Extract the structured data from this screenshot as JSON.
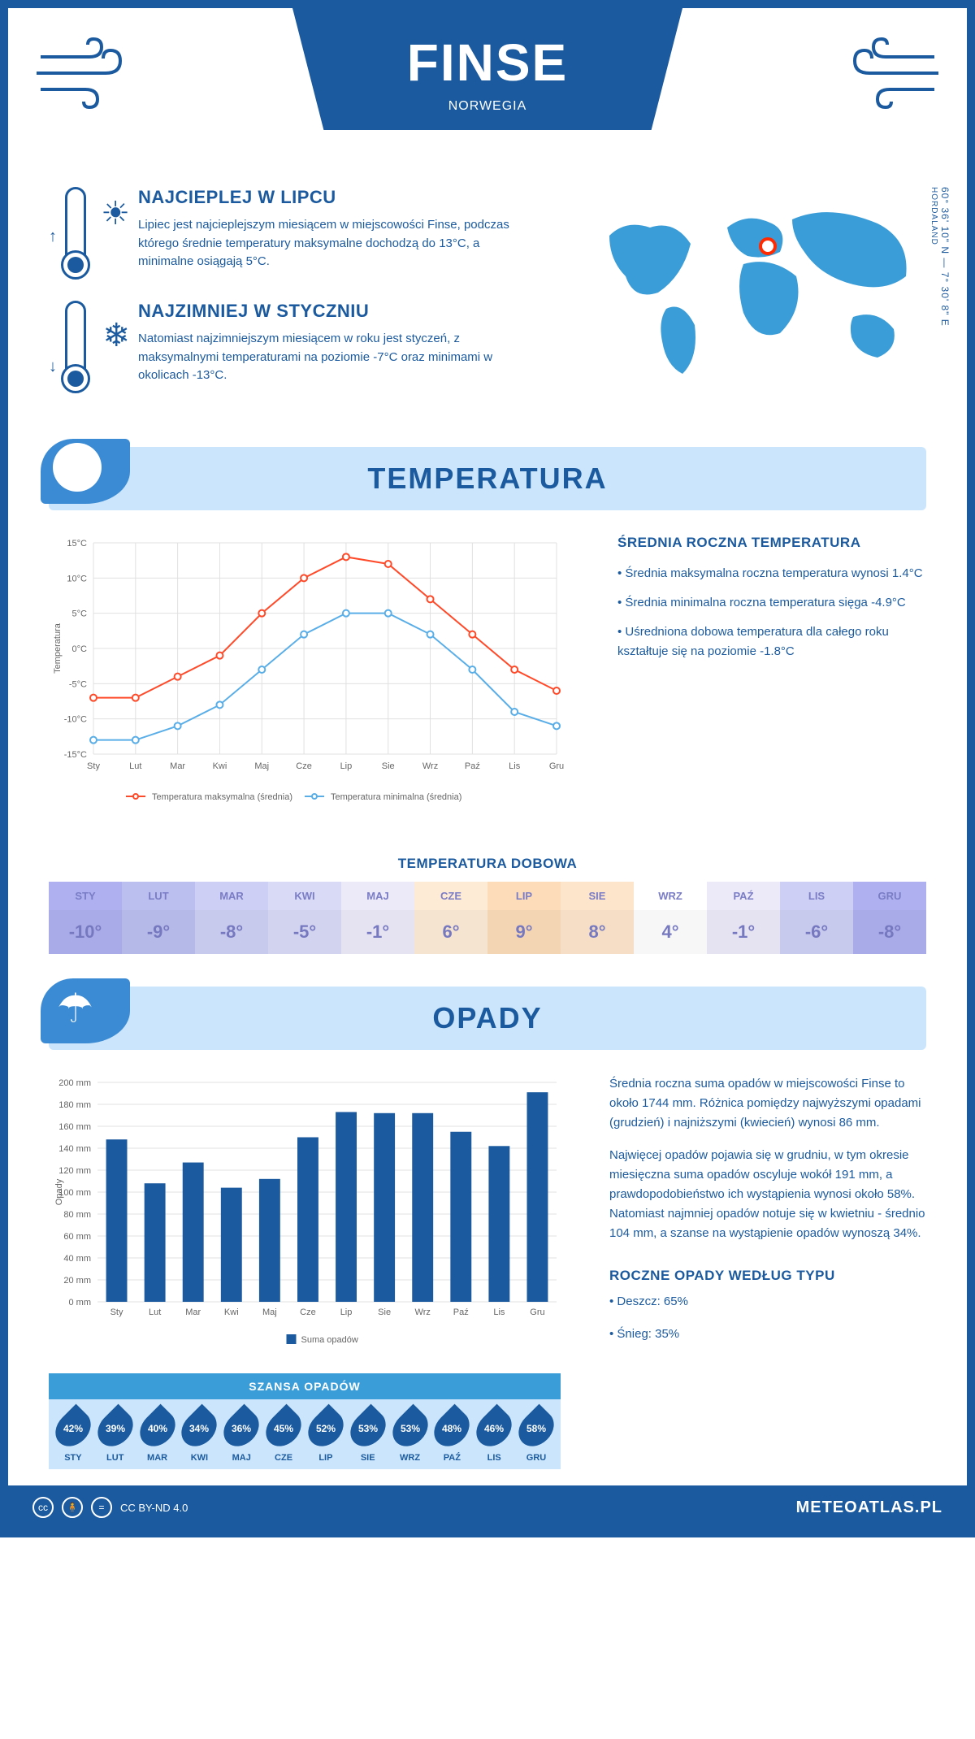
{
  "header": {
    "title": "FINSE",
    "subtitle": "NORWEGIA"
  },
  "coordinates": "60° 36' 10\" N — 7° 30' 8\" E",
  "region": "HORDALAND",
  "hottest": {
    "title": "NAJCIEPLEJ W LIPCU",
    "body": "Lipiec jest najcieplejszym miesiącem w miejscowości Finse, podczas którego średnie temperatury maksymalne dochodzą do 13°C, a minimalne osiągają 5°C."
  },
  "coldest": {
    "title": "NAJZIMNIEJ W STYCZNIU",
    "body": "Natomiast najzimniejszym miesiącem w roku jest styczeń, z maksymalnymi temperaturami na poziomie -7°C oraz minimami w okolicach -13°C."
  },
  "temp_section_title": "TEMPERATURA",
  "temp_chart": {
    "type": "line",
    "months": [
      "Sty",
      "Lut",
      "Mar",
      "Kwi",
      "Maj",
      "Cze",
      "Lip",
      "Sie",
      "Wrz",
      "Paź",
      "Lis",
      "Gru"
    ],
    "series": [
      {
        "label": "Temperatura maksymalna (średnia)",
        "color": "#ff4a2a",
        "values": [
          -7,
          -7,
          -4,
          -1,
          5,
          10,
          13,
          12,
          7,
          2,
          -3,
          -6
        ]
      },
      {
        "label": "Temperatura minimalna (średnia)",
        "color": "#5aaee8",
        "values": [
          -13,
          -13,
          -11,
          -8,
          -3,
          2,
          5,
          5,
          2,
          -3,
          -9,
          -11
        ]
      }
    ],
    "ylabel": "Temperatura",
    "ylim": [
      -15,
      15
    ],
    "ytick_step": 5,
    "grid_color": "#e0e0e0",
    "axis_color": "#9aa0a6",
    "tick_font_size": 11,
    "label_font_size": 11,
    "marker": "circle-open",
    "marker_size": 4,
    "line_width": 2
  },
  "temp_stats": {
    "title": "ŚREDNIA ROCZNA TEMPERATURA",
    "items": [
      "• Średnia maksymalna roczna temperatura wynosi 1.4°C",
      "• Średnia minimalna roczna temperatura sięga -4.9°C",
      "• Uśredniona dobowa temperatura dla całego roku kształtuje się na poziomie -1.8°C"
    ]
  },
  "daily_title": "TEMPERATURA DOBOWA",
  "daily": {
    "months": [
      "STY",
      "LUT",
      "MAR",
      "KWI",
      "MAJ",
      "CZE",
      "LIP",
      "SIE",
      "WRZ",
      "PAŹ",
      "LIS",
      "GRU"
    ],
    "values": [
      "-10°",
      "-9°",
      "-8°",
      "-5°",
      "-1°",
      "6°",
      "9°",
      "8°",
      "4°",
      "-1°",
      "-6°",
      "-8°"
    ],
    "colors": [
      "#aeb0ef",
      "#bbbfef",
      "#cdcff4",
      "#d9dbf6",
      "#eceaf9",
      "#fdebd6",
      "#fcdcb9",
      "#fde5cb",
      "#ffffff",
      "#eceaf9",
      "#cdcff4",
      "#aeb0ef"
    ],
    "text_color": "#7a7cc6"
  },
  "opady_section_title": "OPADY",
  "precip_chart": {
    "type": "bar",
    "months": [
      "Sty",
      "Lut",
      "Mar",
      "Kwi",
      "Maj",
      "Cze",
      "Lip",
      "Sie",
      "Wrz",
      "Paź",
      "Lis",
      "Gru"
    ],
    "values": [
      148,
      108,
      127,
      104,
      112,
      150,
      173,
      172,
      172,
      155,
      142,
      191
    ],
    "bar_color": "#1b5a9e",
    "ylabel": "Opady",
    "ylim": [
      0,
      200
    ],
    "ytick_step": 20,
    "ytick_suffix": " mm",
    "grid_color": "#e0e0e0",
    "axis_color": "#9aa0a6",
    "bar_width": 0.55,
    "tick_font_size": 11,
    "legend_label": "Suma opadów"
  },
  "opady_text": [
    "Średnia roczna suma opadów w miejscowości Finse to około 1744 mm. Różnica pomiędzy najwyższymi opadami (grudzień) i najniższymi (kwiecień) wynosi 86 mm.",
    "Najwięcej opadów pojawia się w grudniu, w tym okresie miesięczna suma opadów oscyluje wokół 191 mm, a prawdopodobieństwo ich wystąpienia wynosi około 58%. Natomiast najmniej opadów notuje się w kwietniu - średnio 104 mm, a szanse na wystąpienie opadów wynoszą 34%."
  ],
  "chance_title": "SZANSA OPADÓW",
  "chance": {
    "months": [
      "STY",
      "LUT",
      "MAR",
      "KWI",
      "MAJ",
      "CZE",
      "LIP",
      "SIE",
      "WRZ",
      "PAŹ",
      "LIS",
      "GRU"
    ],
    "values": [
      "42%",
      "39%",
      "40%",
      "34%",
      "36%",
      "45%",
      "52%",
      "53%",
      "53%",
      "48%",
      "46%",
      "58%"
    ]
  },
  "precip_type": {
    "title": "ROCZNE OPADY WEDŁUG TYPU",
    "items": [
      "• Deszcz: 65%",
      "• Śnieg: 35%"
    ]
  },
  "footer": {
    "license": "CC BY-ND 4.0",
    "site": "METEOATLAS.PL"
  },
  "map_pin": {
    "left_pct": 51,
    "top_pct": 22
  }
}
